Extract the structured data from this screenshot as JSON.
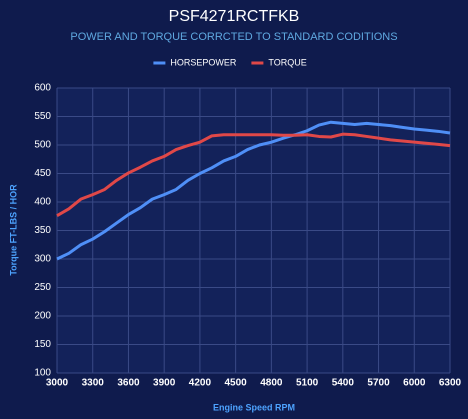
{
  "chart_data": {
    "type": "line",
    "title": "PSF4271RCTFKB",
    "subtitle": "POWER AND TORQUE CORRCTED TO STANDARD CODITIONS",
    "x_label": "Engine Speed RPM",
    "y_label": "Torque FT-LBS / HOR",
    "x": [
      3000,
      3100,
      3200,
      3300,
      3400,
      3500,
      3600,
      3700,
      3800,
      3900,
      4000,
      4100,
      4200,
      4300,
      4400,
      4500,
      4600,
      4700,
      4800,
      4900,
      5000,
      5100,
      5200,
      5300,
      5400,
      5500,
      5600,
      5700,
      5800,
      5900,
      6000,
      6100,
      6200,
      6300
    ],
    "series": [
      {
        "name": "HORSEPOWER",
        "color": "#4f8ff7",
        "values": [
          300,
          310,
          325,
          335,
          348,
          363,
          378,
          390,
          405,
          413,
          422,
          438,
          450,
          460,
          472,
          480,
          492,
          500,
          505,
          512,
          518,
          525,
          535,
          540,
          538,
          536,
          538,
          536,
          534,
          531,
          528,
          526,
          524,
          521
        ]
      },
      {
        "name": "TORQUE",
        "color": "#e04848",
        "values": [
          376,
          388,
          405,
          413,
          422,
          438,
          451,
          461,
          472,
          480,
          492,
          499,
          505,
          516,
          518,
          518,
          518,
          518,
          518,
          517,
          517,
          518,
          515,
          514,
          519,
          518,
          515,
          512,
          509,
          507,
          505,
          503,
          501,
          499
        ]
      }
    ],
    "xlim": [
      3000,
      6300
    ],
    "xticks": [
      3000,
      3300,
      3600,
      3900,
      4200,
      4500,
      4800,
      5100,
      5400,
      5700,
      6000,
      6300
    ],
    "ylim": [
      100,
      600
    ],
    "yticks": [
      100,
      150,
      200,
      250,
      300,
      350,
      400,
      450,
      500,
      550,
      600
    ],
    "grid": true,
    "legend": "top"
  }
}
